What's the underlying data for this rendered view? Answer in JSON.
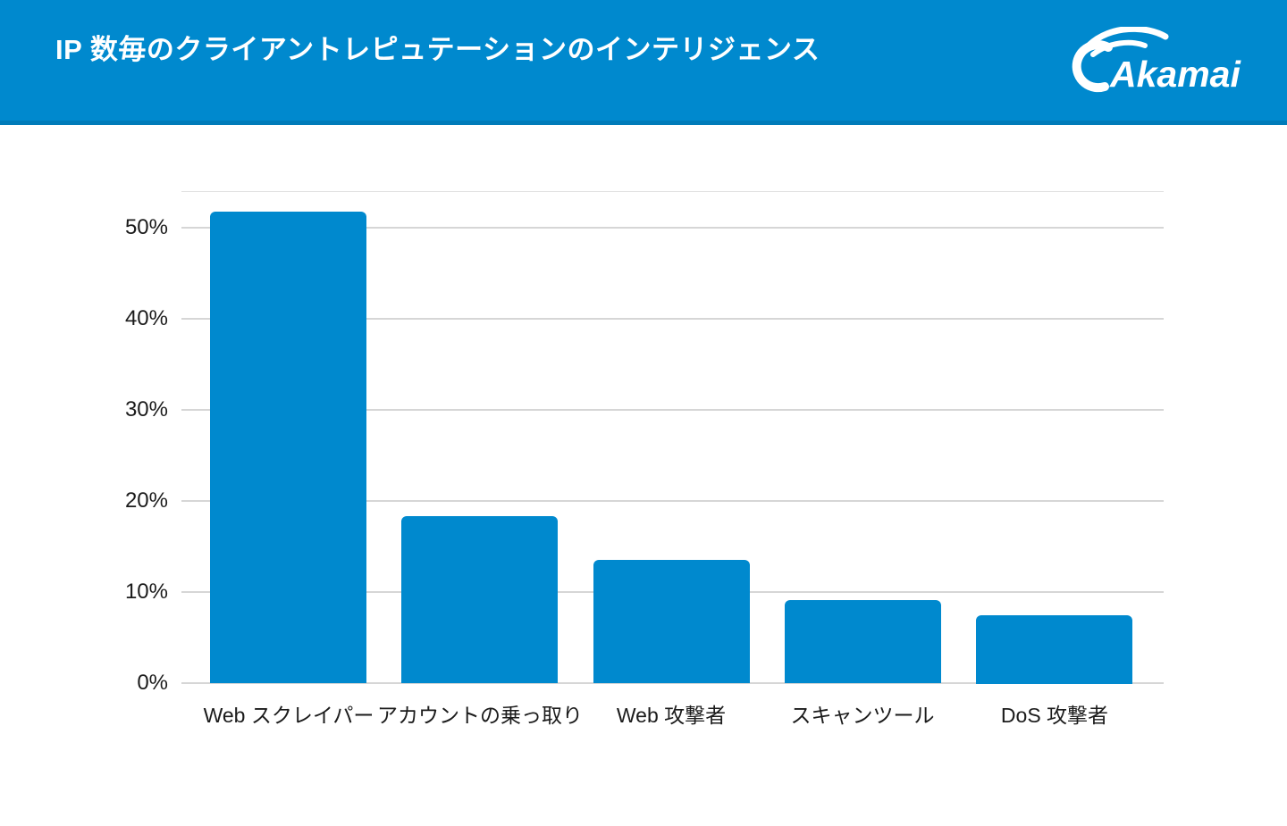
{
  "header": {
    "title": "IP 数毎のクライアントレピュテーションのインテリジェンス",
    "brand": "Akamai",
    "background_color": "#0089CE"
  },
  "chart_data": {
    "type": "bar",
    "title": "IP 数毎のクライアントレピュテーションのインテリジェンス",
    "categories": [
      "Web スクレイパー",
      "アカウントの乗っ取り",
      "Web 攻撃者",
      "スキャンツール",
      "DoS 攻撃者"
    ],
    "values": [
      51.8,
      18.3,
      13.5,
      9.1,
      7.5
    ],
    "unit": "%",
    "xlabel": "",
    "ylabel": "",
    "ylim": [
      0,
      54
    ],
    "yticks": [
      0,
      10,
      20,
      30,
      40,
      50
    ],
    "ytick_labels": [
      "0%",
      "10%",
      "20%",
      "30%",
      "40%",
      "50%"
    ],
    "grid": true,
    "legend": false,
    "bar_color": "#0089CE",
    "gridline_color": "#D6D6D6",
    "plot_top_line_color": "#E2E2E2",
    "axis_text_color": "#1B1B1B"
  }
}
